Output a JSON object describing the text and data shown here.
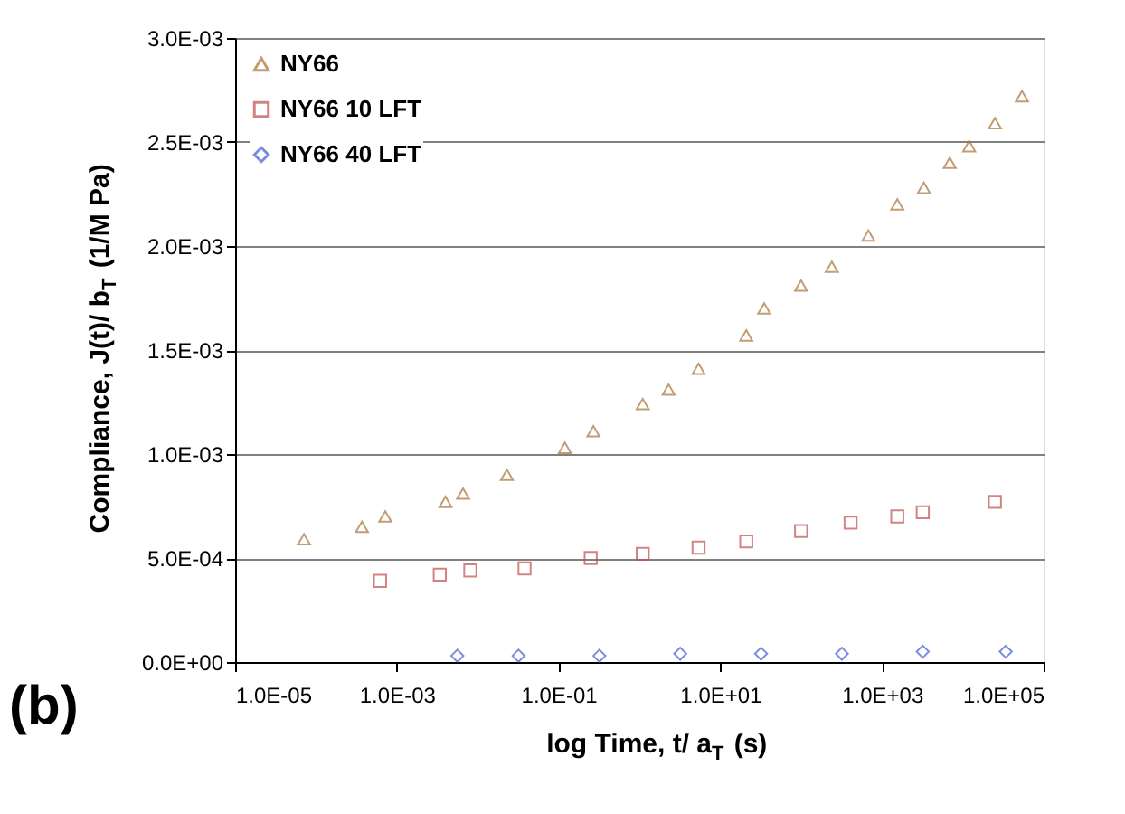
{
  "chart_data": {
    "type": "scatter",
    "xlabel": "log Time, t/ a$_{T}$ (s)",
    "ylabel": "Compliance, J(t)/ b$_{T}$ (1/M Pa)",
    "annotations": [
      "(b)"
    ],
    "log": "x",
    "grid": "y",
    "legend": "top left",
    "xlim": [
      1e-05,
      100000
    ],
    "ylim": [
      0,
      0.003
    ],
    "xticks": [
      {
        "value": 1e-05,
        "label": "1.0E-05"
      },
      {
        "value": 0.001,
        "label": "1.0E-03"
      },
      {
        "value": 0.1,
        "label": "1.0E-01"
      },
      {
        "value": 10,
        "label": "1.0E+01"
      },
      {
        "value": 1000,
        "label": "1.0E+03"
      },
      {
        "value": 100000,
        "label": "1.0E+05"
      }
    ],
    "yticks": [
      {
        "value": 0,
        "label": "0.0E+00"
      },
      {
        "value": 0.0005,
        "label": "5.0E-04"
      },
      {
        "value": 0.001,
        "label": "1.0E-03"
      },
      {
        "value": 0.0015,
        "label": "1.5E-03"
      },
      {
        "value": 0.002,
        "label": "2.0E-03"
      },
      {
        "value": 0.0025,
        "label": "2.5E-03"
      },
      {
        "value": 0.003,
        "label": "3.0E-03"
      }
    ],
    "series": [
      {
        "name": "NY66",
        "color": "#a8743a",
        "marker": "triangle",
        "x": [
          7.1e-05,
          0.00037,
          0.00072,
          0.004,
          0.0066,
          0.023,
          0.12,
          0.27,
          1.1,
          2.3,
          5.4,
          21,
          35,
          100,
          240,
          680,
          1550,
          3300,
          6900,
          12000,
          25000,
          54000
        ],
        "values": [
          0.00059,
          0.00065,
          0.0007,
          0.00077,
          0.00081,
          0.0009,
          0.00103,
          0.00111,
          0.00124,
          0.00131,
          0.00141,
          0.00157,
          0.0017,
          0.00181,
          0.0019,
          0.00205,
          0.0022,
          0.00228,
          0.0024,
          0.00248,
          0.00259,
          0.00272
        ]
      },
      {
        "name": "NY66 10 LFT",
        "color": "#c0504d",
        "marker": "square",
        "x": [
          0.00062,
          0.0034,
          0.0081,
          0.038,
          0.25,
          1.1,
          5.4,
          21,
          100,
          410,
          1550,
          3200,
          25000
        ],
        "values": [
          0.00039,
          0.00042,
          0.00044,
          0.00045,
          0.0005,
          0.00052,
          0.00055,
          0.00058,
          0.00063,
          0.00067,
          0.0007,
          0.00072,
          0.00077
        ]
      },
      {
        "name": "NY66 40 LFT",
        "color": "#3f5fd0",
        "marker": "diamond",
        "x": [
          0.0056,
          0.032,
          0.32,
          3.2,
          32,
          320,
          3200,
          34000
        ],
        "values": [
          3e-05,
          3e-05,
          3e-05,
          4e-05,
          4e-05,
          4e-05,
          5e-05,
          5e-05
        ]
      }
    ]
  }
}
